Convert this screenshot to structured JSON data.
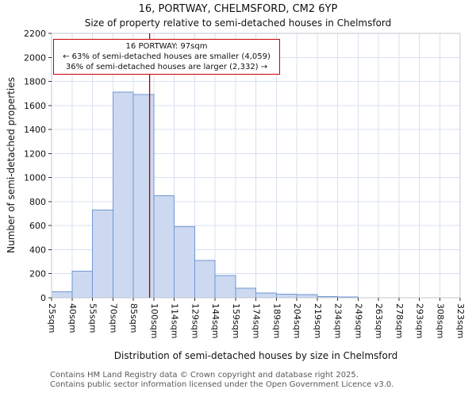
{
  "header": {
    "title": "16, PORTWAY, CHELMSFORD, CM2 6YP",
    "subtitle": "Size of property relative to semi-detached houses in Chelmsford"
  },
  "chart_data": {
    "type": "bar",
    "histogram": true,
    "title": "16, PORTWAY, CHELMSFORD, CM2 6YP",
    "subtitle": "Size of property relative to semi-detached houses in Chelmsford",
    "xlabel": "Distribution of semi-detached houses by size in Chelmsford",
    "ylabel": "Number of semi-detached properties",
    "bin_edges_sqm": [
      25,
      40,
      55,
      70,
      85,
      100,
      114,
      129,
      144,
      159,
      174,
      189,
      204,
      219,
      234,
      249,
      263,
      278,
      293,
      308,
      323
    ],
    "categories": [
      "25sqm",
      "40sqm",
      "55sqm",
      "70sqm",
      "85sqm",
      "100sqm",
      "114sqm",
      "129sqm",
      "144sqm",
      "159sqm",
      "174sqm",
      "189sqm",
      "204sqm",
      "219sqm",
      "234sqm",
      "249sqm",
      "263sqm",
      "278sqm",
      "293sqm",
      "308sqm",
      "323sqm"
    ],
    "values": [
      50,
      220,
      730,
      1710,
      1690,
      850,
      590,
      310,
      185,
      80,
      40,
      30,
      25,
      10,
      5,
      0,
      0,
      0,
      0,
      0
    ],
    "ylim": [
      0,
      2200
    ],
    "ytick_step": 200,
    "grid": true,
    "legend": "none",
    "bar_fill": "#ccd9f1",
    "bar_stroke": "#7097d4",
    "grid_color": "#d8e0ef",
    "spine_color": "#c3c7cf",
    "tick_color": "#333333",
    "marker": {
      "value_sqm": 97,
      "color": "#a40000"
    },
    "annotation": {
      "line1": "16 PORTWAY: 97sqm",
      "line2": "← 63% of semi-detached houses are smaller (4,059)",
      "line3": "36% of semi-detached houses are larger (2,332) →",
      "border_color": "#cc0000"
    }
  },
  "footer": {
    "line1": "Contains HM Land Registry data © Crown copyright and database right 2025.",
    "line2": "Contains public sector information licensed under the Open Government Licence v3.0."
  }
}
